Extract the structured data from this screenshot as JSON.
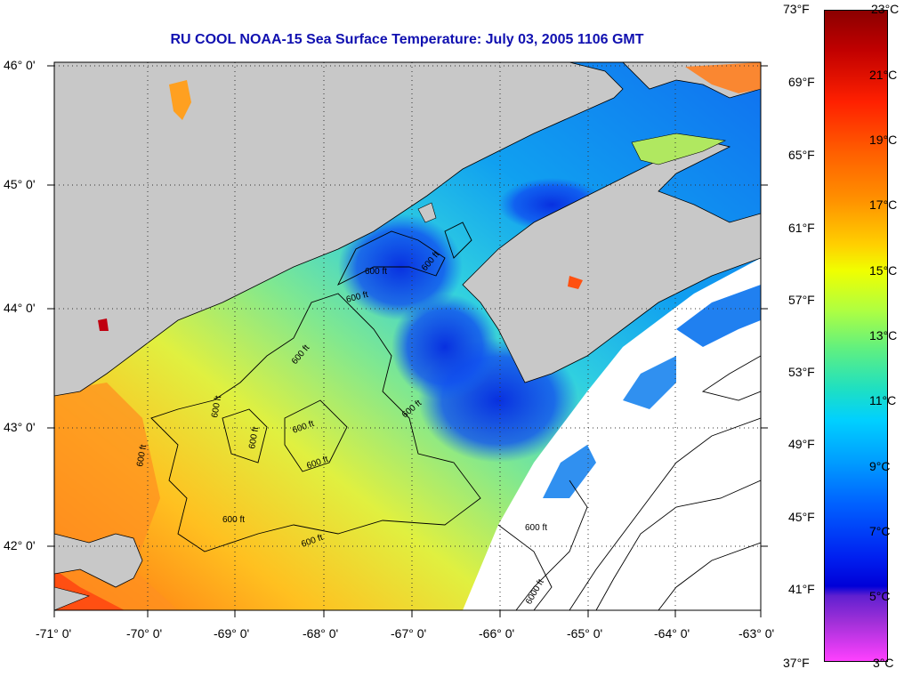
{
  "title": "RU COOL  NOAA-15  Sea Surface Temperature:  July 03, 2005 1106 GMT",
  "axes": {
    "lat_labels": [
      "46° 0'",
      "45° 0'",
      "44° 0'",
      "43° 0'",
      "42° 0'"
    ],
    "lon_labels": [
      "-71° 0'",
      "-70° 0'",
      "-69° 0'",
      "-68° 0'",
      "-67° 0'",
      "-66° 0'",
      "-65° 0'",
      "-64° 0'",
      "-63° 0'"
    ]
  },
  "colorbar": {
    "fahrenheit": [
      "73°F",
      "69°F",
      "65°F",
      "61°F",
      "57°F",
      "53°F",
      "49°F",
      "45°F",
      "41°F",
      "37°F"
    ],
    "celsius": [
      "23°C",
      "21°C",
      "19°C",
      "17°C",
      "15°C",
      "13°C",
      "11°C",
      "9°C",
      "7°C",
      "5°C",
      "3°C"
    ]
  },
  "contour_labels": [
    "600 ft",
    "600 ft",
    "600 ft",
    "600 ft",
    "600 ft",
    "600 ft",
    "600 ft",
    "600 ft",
    "600 ft",
    "600 ft",
    "600 ft",
    "600 ft",
    "600 ft",
    "6000 ft"
  ],
  "colors": {
    "land": "#c8c8c8",
    "title": "#1010b0",
    "no_data": "#ffffff"
  }
}
